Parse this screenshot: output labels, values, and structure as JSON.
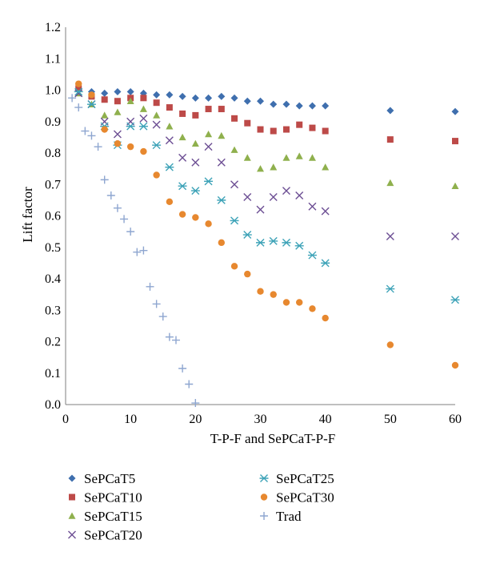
{
  "chart_data": {
    "type": "scatter",
    "xlabel": "T-P-F and SePCaT-P-F",
    "ylabel": "Lift factor",
    "xlim": [
      0,
      60
    ],
    "ylim": [
      0,
      1.2
    ],
    "x_ticks": [
      0,
      10,
      20,
      30,
      40,
      50,
      60
    ],
    "y_ticks": [
      "0.0",
      "0.1",
      "0.2",
      "0.3",
      "0.4",
      "0.5",
      "0.6",
      "0.7",
      "0.8",
      "0.9",
      "1.0",
      "1.1",
      "1.2"
    ],
    "grid": false,
    "legend_position": "bottom",
    "series": [
      {
        "name": "SePCaT5",
        "marker": "diamond",
        "color": "#3f6fae",
        "points": [
          [
            2,
            1.0
          ],
          [
            4,
            0.995
          ],
          [
            6,
            0.99
          ],
          [
            8,
            0.995
          ],
          [
            10,
            0.995
          ],
          [
            12,
            0.99
          ],
          [
            14,
            0.985
          ],
          [
            16,
            0.985
          ],
          [
            18,
            0.98
          ],
          [
            20,
            0.975
          ],
          [
            22,
            0.975
          ],
          [
            24,
            0.98
          ],
          [
            26,
            0.975
          ],
          [
            28,
            0.965
          ],
          [
            30,
            0.965
          ],
          [
            32,
            0.955
          ],
          [
            34,
            0.955
          ],
          [
            36,
            0.95
          ],
          [
            38,
            0.95
          ],
          [
            40,
            0.95
          ],
          [
            50,
            0.935
          ],
          [
            60,
            0.932
          ]
        ]
      },
      {
        "name": "SePCaT10",
        "marker": "square",
        "color": "#bd4a48",
        "points": [
          [
            2,
            1.005
          ],
          [
            4,
            0.98
          ],
          [
            6,
            0.97
          ],
          [
            8,
            0.965
          ],
          [
            10,
            0.975
          ],
          [
            12,
            0.975
          ],
          [
            14,
            0.96
          ],
          [
            16,
            0.945
          ],
          [
            18,
            0.925
          ],
          [
            20,
            0.92
          ],
          [
            22,
            0.94
          ],
          [
            24,
            0.94
          ],
          [
            26,
            0.91
          ],
          [
            28,
            0.895
          ],
          [
            30,
            0.875
          ],
          [
            32,
            0.87
          ],
          [
            34,
            0.875
          ],
          [
            36,
            0.89
          ],
          [
            38,
            0.88
          ],
          [
            40,
            0.87
          ],
          [
            50,
            0.843
          ],
          [
            60,
            0.838
          ]
        ]
      },
      {
        "name": "SePCaT15",
        "marker": "triangle",
        "color": "#8fb04d",
        "points": [
          [
            2,
            0.99
          ],
          [
            4,
            0.955
          ],
          [
            6,
            0.92
          ],
          [
            8,
            0.93
          ],
          [
            10,
            0.965
          ],
          [
            12,
            0.94
          ],
          [
            14,
            0.92
          ],
          [
            16,
            0.885
          ],
          [
            18,
            0.85
          ],
          [
            20,
            0.83
          ],
          [
            22,
            0.86
          ],
          [
            24,
            0.855
          ],
          [
            26,
            0.81
          ],
          [
            28,
            0.785
          ],
          [
            30,
            0.75
          ],
          [
            32,
            0.755
          ],
          [
            34,
            0.785
          ],
          [
            36,
            0.79
          ],
          [
            38,
            0.785
          ],
          [
            40,
            0.755
          ],
          [
            50,
            0.705
          ],
          [
            60,
            0.695
          ]
        ]
      },
      {
        "name": "SePCaT20",
        "marker": "x",
        "color": "#6d4f94",
        "points": [
          [
            2,
            0.99
          ],
          [
            4,
            0.955
          ],
          [
            6,
            0.9
          ],
          [
            8,
            0.86
          ],
          [
            10,
            0.9
          ],
          [
            12,
            0.91
          ],
          [
            14,
            0.89
          ],
          [
            16,
            0.84
          ],
          [
            18,
            0.785
          ],
          [
            20,
            0.77
          ],
          [
            22,
            0.82
          ],
          [
            24,
            0.77
          ],
          [
            26,
            0.7
          ],
          [
            28,
            0.66
          ],
          [
            30,
            0.62
          ],
          [
            32,
            0.66
          ],
          [
            34,
            0.68
          ],
          [
            36,
            0.665
          ],
          [
            38,
            0.63
          ],
          [
            40,
            0.615
          ],
          [
            50,
            0.535
          ],
          [
            60,
            0.535
          ]
        ]
      },
      {
        "name": "SePCaT25",
        "marker": "asterisk",
        "color": "#3ea3b8",
        "points": [
          [
            2,
            0.995
          ],
          [
            4,
            0.955
          ],
          [
            6,
            0.885
          ],
          [
            8,
            0.825
          ],
          [
            10,
            0.885
          ],
          [
            12,
            0.885
          ],
          [
            14,
            0.825
          ],
          [
            16,
            0.755
          ],
          [
            18,
            0.695
          ],
          [
            20,
            0.68
          ],
          [
            22,
            0.71
          ],
          [
            24,
            0.65
          ],
          [
            26,
            0.585
          ],
          [
            28,
            0.54
          ],
          [
            30,
            0.515
          ],
          [
            32,
            0.52
          ],
          [
            34,
            0.515
          ],
          [
            36,
            0.505
          ],
          [
            38,
            0.475
          ],
          [
            40,
            0.45
          ],
          [
            50,
            0.368
          ],
          [
            60,
            0.333
          ]
        ]
      },
      {
        "name": "SePCaT30",
        "marker": "circle",
        "color": "#e7882f",
        "points": [
          [
            2,
            1.02
          ],
          [
            4,
            0.985
          ],
          [
            6,
            0.875
          ],
          [
            8,
            0.83
          ],
          [
            10,
            0.82
          ],
          [
            12,
            0.805
          ],
          [
            14,
            0.73
          ],
          [
            16,
            0.645
          ],
          [
            18,
            0.605
          ],
          [
            20,
            0.595
          ],
          [
            22,
            0.575
          ],
          [
            24,
            0.515
          ],
          [
            26,
            0.44
          ],
          [
            28,
            0.415
          ],
          [
            30,
            0.36
          ],
          [
            32,
            0.35
          ],
          [
            34,
            0.325
          ],
          [
            36,
            0.325
          ],
          [
            38,
            0.305
          ],
          [
            40,
            0.275
          ],
          [
            50,
            0.19
          ],
          [
            60,
            0.125
          ]
        ]
      },
      {
        "name": "Trad",
        "marker": "plus",
        "color": "#8ea6d0",
        "points": [
          [
            1,
            0.975
          ],
          [
            2,
            0.945
          ],
          [
            3,
            0.87
          ],
          [
            4,
            0.855
          ],
          [
            5,
            0.82
          ],
          [
            6,
            0.715
          ],
          [
            7,
            0.665
          ],
          [
            8,
            0.625
          ],
          [
            9,
            0.59
          ],
          [
            10,
            0.55
          ],
          [
            11,
            0.485
          ],
          [
            12,
            0.49
          ],
          [
            13,
            0.375
          ],
          [
            14,
            0.32
          ],
          [
            15,
            0.28
          ],
          [
            16,
            0.215
          ],
          [
            17,
            0.205
          ],
          [
            18,
            0.115
          ],
          [
            19,
            0.065
          ],
          [
            20,
            0.005
          ]
        ]
      }
    ]
  }
}
